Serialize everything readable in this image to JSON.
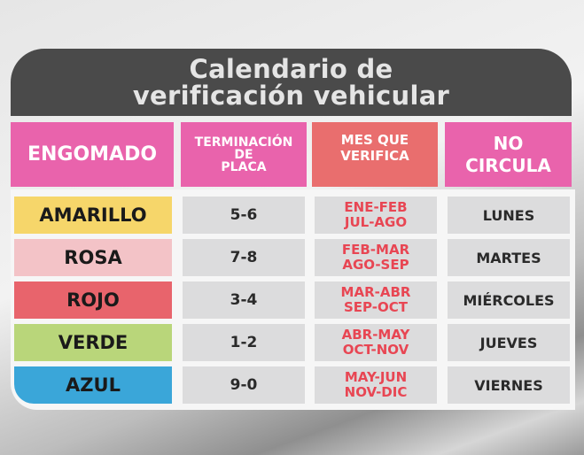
{
  "title": {
    "line1": "Calendario de",
    "line2": "verificación vehicular"
  },
  "headers": [
    "ENGOMADO",
    "TERMINACIÓN DE PLACA",
    "MES QUE VERIFICA",
    "NO CIRCULA"
  ],
  "header_lines": {
    "h2": [
      "TERMINACIÓN",
      "DE",
      "PLACA"
    ],
    "h3": [
      "MES QUE",
      "VERIFICA"
    ],
    "h4": [
      "NO",
      "CIRCULA"
    ]
  },
  "colors": {
    "header_pink": "#e963ac",
    "header_salmon": "#e96e6e",
    "title_bg": "#4a4a4a",
    "month_text": "#e84653"
  },
  "rows": [
    {
      "engomado": "AMARILLO",
      "color": "#f6d66a",
      "placa": "5-6",
      "meses": [
        "ENE-FEB",
        "JUL-AGO"
      ],
      "no_circula": "LUNES"
    },
    {
      "engomado": "ROSA",
      "color": "#f3c3c7",
      "placa": "7-8",
      "meses": [
        "FEB-MAR",
        "AGO-SEP"
      ],
      "no_circula": "MARTES"
    },
    {
      "engomado": "ROJO",
      "color": "#e8646c",
      "placa": "3-4",
      "meses": [
        "MAR-ABR",
        "SEP-OCT"
      ],
      "no_circula": "MIÉRCOLES"
    },
    {
      "engomado": "VERDE",
      "color": "#b9d67a",
      "placa": "1-2",
      "meses": [
        "ABR-MAY",
        "OCT-NOV"
      ],
      "no_circula": "JUEVES"
    },
    {
      "engomado": "AZUL",
      "color": "#3aa6d9",
      "placa": "9-0",
      "meses": [
        "MAY-JUN",
        "NOV-DIC"
      ],
      "no_circula": "VIERNES"
    }
  ]
}
